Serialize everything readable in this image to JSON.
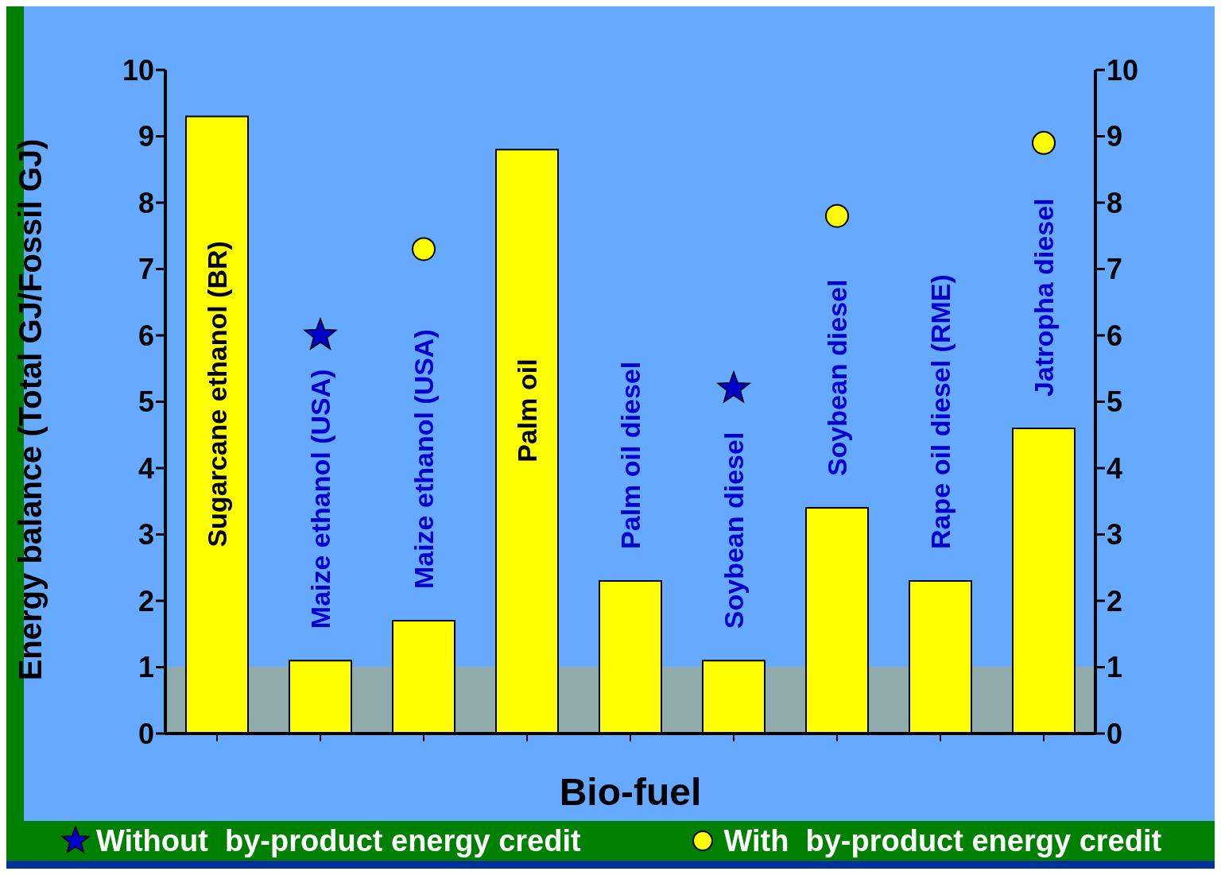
{
  "chart_data": {
    "type": "bar",
    "xlabel": "Bio-fuel",
    "ylabel": "Energy balance (Total GJ/Fossil GJ)",
    "categories": [
      "Sugarcane ethanol (BR)",
      "Maize ethanol (USA)",
      "Maize ethanol (USA)",
      "Palm oil",
      "Palm oil diesel",
      "Soybean diesel",
      "Soybean diesel",
      "Rape oil diesel (RME)",
      "Jatropha diesel"
    ],
    "series": [
      {
        "color": "#ffff00",
        "values": [
          9.3,
          1.1,
          1.7,
          8.8,
          2.3,
          1.1,
          3.4,
          2.3,
          4.6
        ]
      },
      {
        "type": "scatter",
        "name": "Without  by-product energy credit",
        "color": "#0000cc",
        "marker": "star",
        "values": [
          null,
          6.0,
          null,
          null,
          null,
          5.2,
          null,
          null,
          null
        ]
      },
      {
        "type": "scatter",
        "name": "With  by-product energy credit",
        "color": "#ffff00",
        "marker": "circle",
        "values": [
          null,
          null,
          7.3,
          null,
          null,
          null,
          7.8,
          null,
          8.9
        ]
      }
    ],
    "ylim": [
      0,
      10
    ],
    "yticks": [
      0,
      1,
      2,
      3,
      4,
      5,
      6,
      7,
      8,
      9,
      10
    ],
    "y2lim": [
      0,
      10
    ],
    "y2ticks": [
      0,
      1,
      2,
      3,
      4,
      5,
      6,
      7,
      8,
      9,
      10
    ],
    "bands": [
      {
        "axis": "y",
        "from": 0,
        "to": 1,
        "color": "#8fabab"
      }
    ],
    "legend": "bottom"
  }
}
